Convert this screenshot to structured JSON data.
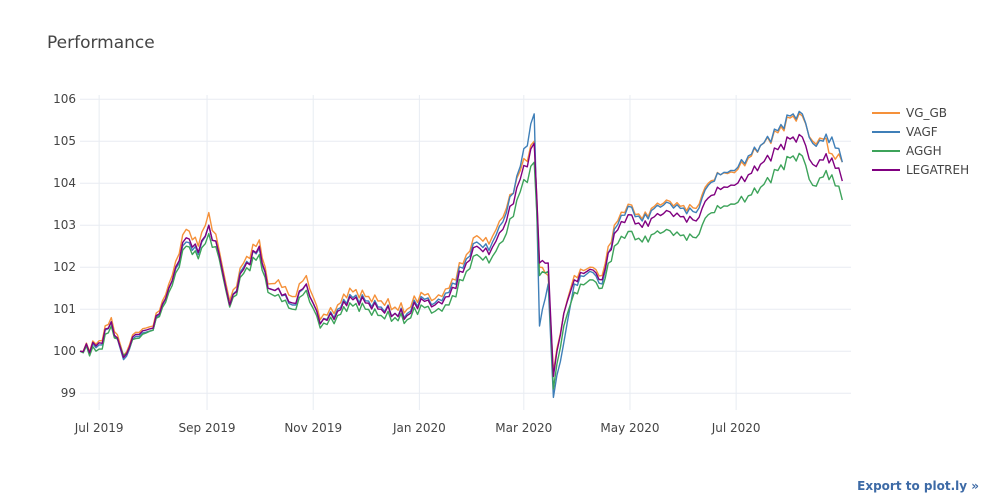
{
  "chart_data": {
    "type": "line",
    "title": "Performance",
    "x_start": "2019-07-01",
    "x_end": "2020-08-31",
    "xlim": [
      "2019-06-20",
      "2020-09-05"
    ],
    "ylim": [
      98.6,
      106.1
    ],
    "x_ticks": [
      {
        "date": "2019-07-01",
        "label": "Jul 2019"
      },
      {
        "date": "2019-09-01",
        "label": "Sep 2019"
      },
      {
        "date": "2019-11-01",
        "label": "Nov 2019"
      },
      {
        "date": "2020-01-01",
        "label": "Jan 2020"
      },
      {
        "date": "2020-03-01",
        "label": "Mar 2020"
      },
      {
        "date": "2020-05-01",
        "label": "May 2020"
      },
      {
        "date": "2020-07-01",
        "label": "Jul 2020"
      }
    ],
    "y_ticks": [
      99,
      100,
      101,
      102,
      103,
      104,
      105,
      106
    ],
    "grid": true,
    "legend_position": "right",
    "series": [
      {
        "name": "VG_GB",
        "color": "#f5913a",
        "points": [
          [
            "2019-06-20",
            100.0
          ],
          [
            "2019-07-01",
            100.25
          ],
          [
            "2019-07-08",
            100.8
          ],
          [
            "2019-07-15",
            99.9
          ],
          [
            "2019-07-22",
            100.45
          ],
          [
            "2019-08-01",
            100.6
          ],
          [
            "2019-08-10",
            101.6
          ],
          [
            "2019-08-20",
            102.9
          ],
          [
            "2019-08-27",
            102.5
          ],
          [
            "2019-09-02",
            103.3
          ],
          [
            "2019-09-08",
            102.4
          ],
          [
            "2019-09-14",
            101.2
          ],
          [
            "2019-09-22",
            102.1
          ],
          [
            "2019-10-01",
            102.65
          ],
          [
            "2019-10-06",
            101.6
          ],
          [
            "2019-10-12",
            101.7
          ],
          [
            "2019-10-20",
            101.3
          ],
          [
            "2019-10-28",
            101.8
          ],
          [
            "2019-11-05",
            100.75
          ],
          [
            "2019-11-15",
            101.1
          ],
          [
            "2019-11-22",
            101.5
          ],
          [
            "2019-12-01",
            101.3
          ],
          [
            "2019-12-10",
            101.2
          ],
          [
            "2019-12-18",
            101.05
          ],
          [
            "2019-12-25",
            101.0
          ],
          [
            "2020-01-02",
            101.4
          ],
          [
            "2020-01-10",
            101.25
          ],
          [
            "2020-01-18",
            101.5
          ],
          [
            "2020-01-28",
            102.3
          ],
          [
            "2020-02-03",
            102.75
          ],
          [
            "2020-02-10",
            102.55
          ],
          [
            "2020-02-20",
            103.4
          ],
          [
            "2020-02-28",
            104.3
          ],
          [
            "2020-03-07",
            105.0
          ],
          [
            "2020-03-10",
            102.0
          ],
          [
            "2020-03-15",
            101.8
          ],
          [
            "2020-03-18",
            99.5
          ],
          [
            "2020-03-24",
            100.9
          ],
          [
            "2020-03-30",
            101.8
          ],
          [
            "2020-04-08",
            102.0
          ],
          [
            "2020-04-15",
            101.8
          ],
          [
            "2020-04-22",
            103.0
          ],
          [
            "2020-04-30",
            103.5
          ],
          [
            "2020-05-08",
            103.15
          ],
          [
            "2020-05-15",
            103.45
          ],
          [
            "2020-05-22",
            103.6
          ],
          [
            "2020-05-30",
            103.45
          ],
          [
            "2020-06-08",
            103.4
          ],
          [
            "2020-06-15",
            104.0
          ],
          [
            "2020-06-22",
            104.2
          ],
          [
            "2020-06-30",
            104.25
          ],
          [
            "2020-07-08",
            104.6
          ],
          [
            "2020-07-15",
            104.9
          ],
          [
            "2020-07-25",
            105.2
          ],
          [
            "2020-08-01",
            105.55
          ],
          [
            "2020-08-08",
            105.6
          ],
          [
            "2020-08-14",
            105.0
          ],
          [
            "2020-08-20",
            105.05
          ],
          [
            "2020-08-25",
            104.7
          ],
          [
            "2020-08-31",
            104.5
          ]
        ]
      },
      {
        "name": "VAGF",
        "color": "#3f7fb8",
        "points": [
          [
            "2019-06-20",
            100.0
          ],
          [
            "2019-07-01",
            100.15
          ],
          [
            "2019-07-08",
            100.7
          ],
          [
            "2019-07-15",
            99.8
          ],
          [
            "2019-07-22",
            100.35
          ],
          [
            "2019-08-01",
            100.5
          ],
          [
            "2019-08-10",
            101.5
          ],
          [
            "2019-08-20",
            102.6
          ],
          [
            "2019-08-27",
            102.3
          ],
          [
            "2019-09-02",
            103.0
          ],
          [
            "2019-09-08",
            102.3
          ],
          [
            "2019-09-14",
            101.1
          ],
          [
            "2019-09-22",
            102.0
          ],
          [
            "2019-10-01",
            102.45
          ],
          [
            "2019-10-06",
            101.5
          ],
          [
            "2019-10-12",
            101.5
          ],
          [
            "2019-10-20",
            101.1
          ],
          [
            "2019-10-28",
            101.6
          ],
          [
            "2019-11-05",
            100.65
          ],
          [
            "2019-11-15",
            101.0
          ],
          [
            "2019-11-22",
            101.35
          ],
          [
            "2019-12-01",
            101.2
          ],
          [
            "2019-12-10",
            101.05
          ],
          [
            "2019-12-18",
            100.9
          ],
          [
            "2019-12-25",
            100.9
          ],
          [
            "2020-01-02",
            101.3
          ],
          [
            "2020-01-10",
            101.15
          ],
          [
            "2020-01-18",
            101.4
          ],
          [
            "2020-01-28",
            102.2
          ],
          [
            "2020-02-03",
            102.6
          ],
          [
            "2020-02-10",
            102.4
          ],
          [
            "2020-02-20",
            103.3
          ],
          [
            "2020-02-28",
            104.4
          ],
          [
            "2020-03-07",
            105.65
          ],
          [
            "2020-03-10",
            100.6
          ],
          [
            "2020-03-15",
            101.6
          ],
          [
            "2020-03-18",
            98.9
          ],
          [
            "2020-03-24",
            100.2
          ],
          [
            "2020-03-30",
            101.6
          ],
          [
            "2020-04-08",
            101.9
          ],
          [
            "2020-04-15",
            101.6
          ],
          [
            "2020-04-22",
            102.9
          ],
          [
            "2020-04-30",
            103.45
          ],
          [
            "2020-05-08",
            103.1
          ],
          [
            "2020-05-15",
            103.4
          ],
          [
            "2020-05-22",
            103.55
          ],
          [
            "2020-05-30",
            103.4
          ],
          [
            "2020-06-08",
            103.3
          ],
          [
            "2020-06-15",
            103.95
          ],
          [
            "2020-06-22",
            104.2
          ],
          [
            "2020-06-30",
            104.3
          ],
          [
            "2020-07-08",
            104.65
          ],
          [
            "2020-07-15",
            104.9
          ],
          [
            "2020-07-25",
            105.25
          ],
          [
            "2020-08-01",
            105.6
          ],
          [
            "2020-08-08",
            105.65
          ],
          [
            "2020-08-14",
            104.95
          ],
          [
            "2020-08-20",
            105.0
          ],
          [
            "2020-08-25",
            105.1
          ],
          [
            "2020-08-31",
            104.5
          ]
        ]
      },
      {
        "name": "AGGH",
        "color": "#3da35a",
        "points": [
          [
            "2019-06-20",
            100.0
          ],
          [
            "2019-07-01",
            100.05
          ],
          [
            "2019-07-08",
            100.6
          ],
          [
            "2019-07-15",
            99.9
          ],
          [
            "2019-07-22",
            100.3
          ],
          [
            "2019-08-01",
            100.5
          ],
          [
            "2019-08-10",
            101.4
          ],
          [
            "2019-08-20",
            102.5
          ],
          [
            "2019-08-27",
            102.2
          ],
          [
            "2019-09-02",
            102.8
          ],
          [
            "2019-09-08",
            102.2
          ],
          [
            "2019-09-14",
            101.05
          ],
          [
            "2019-09-22",
            101.85
          ],
          [
            "2019-10-01",
            102.3
          ],
          [
            "2019-10-06",
            101.4
          ],
          [
            "2019-10-12",
            101.35
          ],
          [
            "2019-10-20",
            101.0
          ],
          [
            "2019-10-28",
            101.45
          ],
          [
            "2019-11-05",
            100.55
          ],
          [
            "2019-11-15",
            100.85
          ],
          [
            "2019-11-22",
            101.15
          ],
          [
            "2019-12-01",
            101.0
          ],
          [
            "2019-12-10",
            100.85
          ],
          [
            "2019-12-18",
            100.8
          ],
          [
            "2019-12-25",
            100.75
          ],
          [
            "2020-01-02",
            101.1
          ],
          [
            "2020-01-10",
            100.95
          ],
          [
            "2020-01-18",
            101.1
          ],
          [
            "2020-01-28",
            101.9
          ],
          [
            "2020-02-03",
            102.3
          ],
          [
            "2020-02-10",
            102.1
          ],
          [
            "2020-02-20",
            102.8
          ],
          [
            "2020-02-28",
            103.8
          ],
          [
            "2020-03-07",
            104.5
          ],
          [
            "2020-03-10",
            101.8
          ],
          [
            "2020-03-15",
            101.9
          ],
          [
            "2020-03-18",
            99.1
          ],
          [
            "2020-03-24",
            100.6
          ],
          [
            "2020-03-30",
            101.4
          ],
          [
            "2020-04-08",
            101.7
          ],
          [
            "2020-04-15",
            101.5
          ],
          [
            "2020-04-22",
            102.5
          ],
          [
            "2020-04-30",
            102.85
          ],
          [
            "2020-05-08",
            102.6
          ],
          [
            "2020-05-15",
            102.8
          ],
          [
            "2020-05-22",
            102.9
          ],
          [
            "2020-05-30",
            102.75
          ],
          [
            "2020-06-08",
            102.7
          ],
          [
            "2020-06-15",
            103.25
          ],
          [
            "2020-06-22",
            103.4
          ],
          [
            "2020-06-30",
            103.5
          ],
          [
            "2020-07-08",
            103.7
          ],
          [
            "2020-07-15",
            103.9
          ],
          [
            "2020-07-25",
            104.3
          ],
          [
            "2020-08-01",
            104.6
          ],
          [
            "2020-08-08",
            104.65
          ],
          [
            "2020-08-14",
            103.95
          ],
          [
            "2020-08-20",
            104.15
          ],
          [
            "2020-08-25",
            104.2
          ],
          [
            "2020-08-31",
            103.6
          ]
        ]
      },
      {
        "name": "LEGATREH",
        "color": "#800080",
        "points": [
          [
            "2019-06-20",
            100.0
          ],
          [
            "2019-07-01",
            100.2
          ],
          [
            "2019-07-08",
            100.7
          ],
          [
            "2019-07-15",
            99.85
          ],
          [
            "2019-07-22",
            100.4
          ],
          [
            "2019-08-01",
            100.55
          ],
          [
            "2019-08-10",
            101.5
          ],
          [
            "2019-08-20",
            102.7
          ],
          [
            "2019-08-27",
            102.35
          ],
          [
            "2019-09-02",
            103.0
          ],
          [
            "2019-09-08",
            102.3
          ],
          [
            "2019-09-14",
            101.1
          ],
          [
            "2019-09-22",
            101.95
          ],
          [
            "2019-10-01",
            102.5
          ],
          [
            "2019-10-06",
            101.5
          ],
          [
            "2019-10-12",
            101.5
          ],
          [
            "2019-10-20",
            101.15
          ],
          [
            "2019-10-28",
            101.6
          ],
          [
            "2019-11-05",
            100.65
          ],
          [
            "2019-11-15",
            100.95
          ],
          [
            "2019-11-22",
            101.3
          ],
          [
            "2019-12-01",
            101.15
          ],
          [
            "2019-12-10",
            101.0
          ],
          [
            "2019-12-18",
            100.9
          ],
          [
            "2019-12-25",
            100.85
          ],
          [
            "2020-01-02",
            101.25
          ],
          [
            "2020-01-10",
            101.1
          ],
          [
            "2020-01-18",
            101.3
          ],
          [
            "2020-01-28",
            102.1
          ],
          [
            "2020-02-03",
            102.5
          ],
          [
            "2020-02-10",
            102.3
          ],
          [
            "2020-02-20",
            103.1
          ],
          [
            "2020-02-28",
            104.1
          ],
          [
            "2020-03-07",
            104.95
          ],
          [
            "2020-03-10",
            102.1
          ],
          [
            "2020-03-15",
            102.1
          ],
          [
            "2020-03-18",
            99.4
          ],
          [
            "2020-03-24",
            100.9
          ],
          [
            "2020-03-30",
            101.7
          ],
          [
            "2020-04-08",
            101.95
          ],
          [
            "2020-04-15",
            101.7
          ],
          [
            "2020-04-22",
            102.8
          ],
          [
            "2020-04-30",
            103.25
          ],
          [
            "2020-05-08",
            102.95
          ],
          [
            "2020-05-15",
            103.2
          ],
          [
            "2020-05-22",
            103.35
          ],
          [
            "2020-05-30",
            103.2
          ],
          [
            "2020-06-08",
            103.1
          ],
          [
            "2020-06-15",
            103.65
          ],
          [
            "2020-06-22",
            103.85
          ],
          [
            "2020-06-30",
            103.95
          ],
          [
            "2020-07-08",
            104.2
          ],
          [
            "2020-07-15",
            104.45
          ],
          [
            "2020-07-25",
            104.8
          ],
          [
            "2020-08-01",
            105.05
          ],
          [
            "2020-08-08",
            105.1
          ],
          [
            "2020-08-14",
            104.45
          ],
          [
            "2020-08-20",
            104.55
          ],
          [
            "2020-08-25",
            104.6
          ],
          [
            "2020-08-31",
            104.05
          ]
        ]
      }
    ]
  },
  "export_link": "Export to plot.ly »"
}
